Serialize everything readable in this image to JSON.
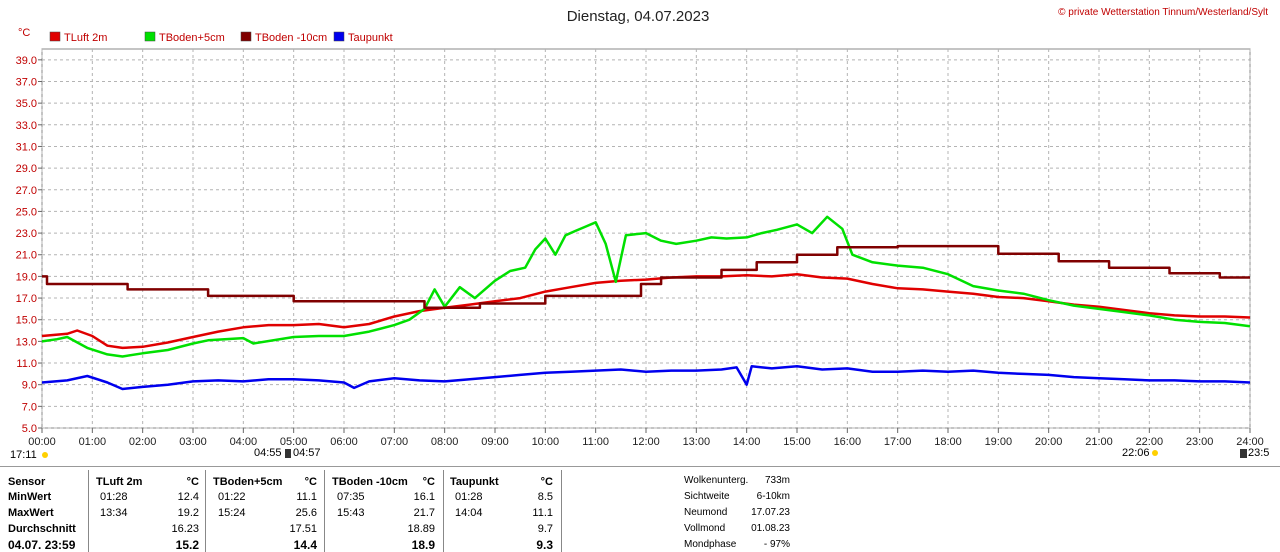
{
  "chart_data": {
    "type": "line",
    "title": "Dienstag, 04.07.2023",
    "copyright": "© private Wetterstation Tinnum/Westerland/Sylt",
    "yunit": "°C",
    "ylim": [
      5,
      40
    ],
    "yticks": [
      "5.0",
      "7.0",
      "9.0",
      "11.0",
      "13.0",
      "15.0",
      "17.0",
      "19.0",
      "21.0",
      "23.0",
      "25.0",
      "27.0",
      "29.0",
      "31.0",
      "33.0",
      "35.0",
      "37.0",
      "39.0"
    ],
    "xlim": [
      0,
      24
    ],
    "xticks": [
      "00:00",
      "01:00",
      "02:00",
      "03:00",
      "04:00",
      "05:00",
      "06:00",
      "07:00",
      "08:00",
      "09:00",
      "10:00",
      "11:00",
      "12:00",
      "13:00",
      "14:00",
      "15:00",
      "16:00",
      "17:00",
      "18:00",
      "19:00",
      "20:00",
      "21:00",
      "22:00",
      "23:00",
      "24:00"
    ],
    "grid": true,
    "legend_position": "top-left",
    "sun_markers": {
      "left": "17:11",
      "sunrise_a": "04:55",
      "sunrise_b": "04:57",
      "sunset": "22:06",
      "right": "23:5"
    },
    "series": [
      {
        "name": "TLuft 2m",
        "color": "#e00000",
        "x": [
          0,
          0.5,
          0.7,
          1,
          1.3,
          1.6,
          2,
          2.5,
          3,
          3.5,
          4,
          4.5,
          5,
          5.5,
          6,
          6.5,
          7,
          7.5,
          8,
          8.5,
          9,
          9.5,
          10,
          10.5,
          11,
          11.5,
          12,
          12.5,
          13,
          13.5,
          14,
          14.5,
          15,
          15.5,
          16,
          16.5,
          17,
          17.5,
          18,
          18.5,
          19,
          19.5,
          20,
          20.5,
          21,
          21.5,
          22,
          22.5,
          23,
          23.5,
          24
        ],
        "y": [
          13.5,
          13.7,
          14.0,
          13.5,
          12.6,
          12.4,
          12.5,
          12.9,
          13.4,
          13.9,
          14.3,
          14.5,
          14.5,
          14.6,
          14.3,
          14.6,
          15.3,
          15.8,
          16.1,
          16.4,
          16.7,
          17.0,
          17.6,
          18.0,
          18.4,
          18.6,
          18.7,
          18.9,
          19.0,
          19.0,
          19.1,
          19.0,
          19.2,
          18.9,
          18.8,
          18.3,
          17.9,
          17.8,
          17.6,
          17.4,
          17.1,
          17.0,
          16.7,
          16.4,
          16.2,
          15.9,
          15.6,
          15.4,
          15.3,
          15.3,
          15.2
        ]
      },
      {
        "name": "TBoden+5cm",
        "color": "#00e000",
        "x": [
          0,
          0.3,
          0.5,
          0.9,
          1.3,
          1.6,
          2,
          2.5,
          3,
          3.3,
          4,
          4.2,
          5,
          5.5,
          6,
          6.5,
          7,
          7.3,
          7.6,
          7.8,
          8,
          8.3,
          8.6,
          9,
          9.3,
          9.6,
          9.8,
          10,
          10.2,
          10.4,
          10.6,
          10.8,
          11,
          11.2,
          11.4,
          11.6,
          12,
          12.3,
          12.6,
          13,
          13.3,
          13.6,
          14,
          14.3,
          14.6,
          15,
          15.3,
          15.6,
          15.9,
          16.1,
          16.5,
          17,
          17.5,
          18,
          18.5,
          19,
          19.5,
          20,
          20.5,
          21,
          21.5,
          22,
          22.5,
          23,
          23.5,
          24
        ],
        "y": [
          13.0,
          13.2,
          13.4,
          12.4,
          11.8,
          11.6,
          11.9,
          12.2,
          12.8,
          13.1,
          13.3,
          12.8,
          13.4,
          13.5,
          13.5,
          13.9,
          14.5,
          15.0,
          16.0,
          17.8,
          16.2,
          18.0,
          17.0,
          18.6,
          19.5,
          19.8,
          21.5,
          22.5,
          21.0,
          22.8,
          23.2,
          23.6,
          24.0,
          22.0,
          18.5,
          22.8,
          23.0,
          22.3,
          22.0,
          22.3,
          22.6,
          22.5,
          22.6,
          23.0,
          23.3,
          23.8,
          23.0,
          24.5,
          23.4,
          21.0,
          20.3,
          20.0,
          19.8,
          19.2,
          18.1,
          17.7,
          17.4,
          16.8,
          16.3,
          16.0,
          15.7,
          15.4,
          15.0,
          14.8,
          14.7,
          14.4
        ]
      },
      {
        "name": "TBoden -10cm",
        "color": "#800000",
        "x": [
          0,
          0.1,
          0.1,
          1.7,
          1.7,
          3.3,
          3.3,
          5.0,
          5.0,
          7.6,
          7.6,
          8.7,
          8.7,
          10.0,
          10.0,
          11.9,
          11.9,
          12.3,
          12.3,
          13.5,
          13.5,
          14.2,
          14.2,
          15.0,
          15.0,
          15.8,
          15.8,
          17.0,
          17.0,
          19.0,
          19.0,
          20.2,
          20.2,
          21.2,
          21.2,
          22.4,
          22.4,
          23.4,
          23.4,
          24
        ],
        "y": [
          19.0,
          19.0,
          18.3,
          18.3,
          17.8,
          17.8,
          17.2,
          17.2,
          16.7,
          16.7,
          16.1,
          16.1,
          16.5,
          16.5,
          17.2,
          17.2,
          18.3,
          18.3,
          18.9,
          18.9,
          19.6,
          19.6,
          20.3,
          20.3,
          21.0,
          21.0,
          21.7,
          21.7,
          21.8,
          21.8,
          21.1,
          21.1,
          20.4,
          20.4,
          19.8,
          19.8,
          19.3,
          19.3,
          18.9,
          18.9
        ]
      },
      {
        "name": "Taupunkt",
        "color": "#0000ee",
        "x": [
          0,
          0.5,
          0.9,
          1.3,
          1.6,
          2,
          2.5,
          3,
          3.5,
          4,
          4.5,
          5,
          5.5,
          6,
          6.2,
          6.5,
          7,
          7.5,
          8,
          8.5,
          9,
          9.5,
          10,
          10.5,
          11,
          11.5,
          12,
          12.5,
          13,
          13.5,
          13.8,
          14,
          14.1,
          14.5,
          15,
          15.5,
          16,
          16.5,
          17,
          17.5,
          18,
          18.5,
          19,
          19.5,
          20,
          20.5,
          21,
          21.5,
          22,
          22.5,
          23,
          23.5,
          24
        ],
        "y": [
          9.2,
          9.4,
          9.8,
          9.2,
          8.6,
          8.8,
          9.0,
          9.3,
          9.4,
          9.3,
          9.5,
          9.5,
          9.4,
          9.2,
          8.7,
          9.3,
          9.6,
          9.4,
          9.3,
          9.5,
          9.7,
          9.9,
          10.1,
          10.2,
          10.3,
          10.4,
          10.2,
          10.3,
          10.3,
          10.4,
          10.6,
          9.0,
          10.7,
          10.5,
          10.7,
          10.4,
          10.5,
          10.2,
          10.2,
          10.3,
          10.2,
          10.3,
          10.1,
          10.0,
          9.9,
          9.7,
          9.6,
          9.5,
          9.4,
          9.4,
          9.3,
          9.3,
          9.2
        ]
      }
    ]
  },
  "table": {
    "header": {
      "sensor": "Sensor",
      "c1": "TLuft 2m",
      "u1": "°C",
      "c2": "TBoden+5cm",
      "u2": "°C",
      "c3": "TBoden -10cm",
      "u3": "°C",
      "c4": "Taupunkt",
      "u4": "°C"
    },
    "rows": [
      {
        "label": "MinWert",
        "t1": "01:28",
        "v1": "12.4",
        "t2": "01:22",
        "v2": "11.1",
        "t3": "07:35",
        "v3": "16.1",
        "t4": "01:28",
        "v4": "8.5"
      },
      {
        "label": "MaxWert",
        "t1": "13:34",
        "v1": "19.2",
        "t2": "15:24",
        "v2": "25.6",
        "t3": "15:43",
        "v3": "21.7",
        "t4": "14:04",
        "v4": "11.1"
      },
      {
        "label": "Durchschnitt",
        "t1": "",
        "v1": "16.23",
        "t2": "",
        "v2": "17.51",
        "t3": "",
        "v3": "18.89",
        "t4": "",
        "v4": "9.7"
      },
      {
        "label": "04.07. 23:59",
        "t1": "",
        "v1": "15.2",
        "t2": "",
        "v2": "14.4",
        "t3": "",
        "v3": "18.9",
        "t4": "",
        "v4": "9.3"
      }
    ]
  },
  "info": [
    {
      "label": "Wolkenunterg.",
      "value": "733m"
    },
    {
      "label": "Sichtweite",
      "value": "6-10km"
    },
    {
      "label": "Neumond",
      "value": "17.07.23"
    },
    {
      "label": "Vollmond",
      "value": "01.08.23"
    },
    {
      "label": "Mondphase",
      "value": "- 97%"
    }
  ]
}
